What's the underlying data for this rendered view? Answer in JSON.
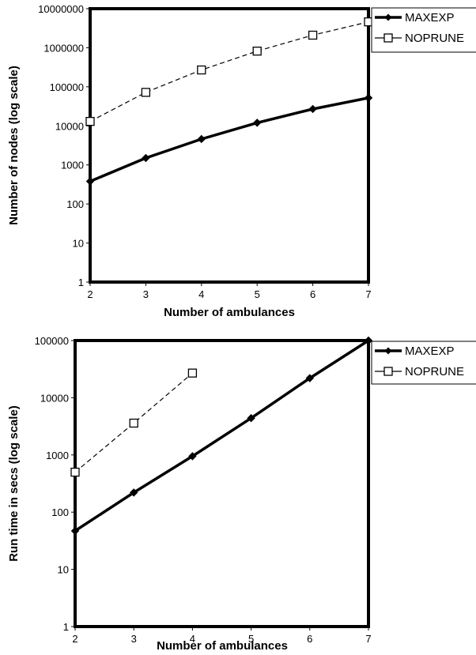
{
  "chart_data": [
    {
      "type": "line",
      "title": "",
      "xlabel": "Number of ambulances",
      "ylabel": "Number of nodes (log scale)",
      "yscale": "log",
      "ylim": [
        1,
        10000000
      ],
      "xlim": [
        2,
        7
      ],
      "x": [
        2,
        3,
        4,
        5,
        6,
        7
      ],
      "yticks": [
        "1",
        "10",
        "100",
        "1000",
        "10000",
        "100000",
        "1000000",
        "10000000"
      ],
      "xticks": [
        "2",
        "3",
        "4",
        "5",
        "6",
        "7"
      ],
      "grid": false,
      "legend": "top-right, outside plot area",
      "series": [
        {
          "name": "MAXEXP",
          "style": "solid thick line, diamond markers",
          "color": "#000000",
          "values": [
            380,
            1500,
            4600,
            12000,
            27000,
            52000
          ]
        },
        {
          "name": "NOPRUNE",
          "style": "dashed line, open square markers",
          "color": "#000000",
          "values": [
            13000,
            72000,
            270000,
            820000,
            2100000,
            4600000
          ]
        }
      ]
    },
    {
      "type": "line",
      "title": "",
      "xlabel": "Number of ambulances",
      "ylabel": "Run time in secs (log scale)",
      "yscale": "log",
      "ylim": [
        1,
        100000
      ],
      "xlim": [
        2,
        7
      ],
      "x": [
        2,
        3,
        4,
        5,
        6,
        7
      ],
      "yticks": [
        "1",
        "10",
        "100",
        "1000",
        "10000",
        "100000"
      ],
      "xticks": [
        "2",
        "3",
        "4",
        "5",
        "6",
        "7"
      ],
      "grid": false,
      "legend": "top-right, outside plot area",
      "series": [
        {
          "name": "MAXEXP",
          "style": "solid thick line, diamond markers",
          "color": "#000000",
          "values": [
            47,
            220,
            950,
            4400,
            22000,
            100000
          ]
        },
        {
          "name": "NOPRUNE",
          "style": "dashed line, open square markers",
          "color": "#000000",
          "x": [
            2,
            3,
            4
          ],
          "values": [
            500,
            3600,
            27000
          ]
        }
      ]
    }
  ]
}
